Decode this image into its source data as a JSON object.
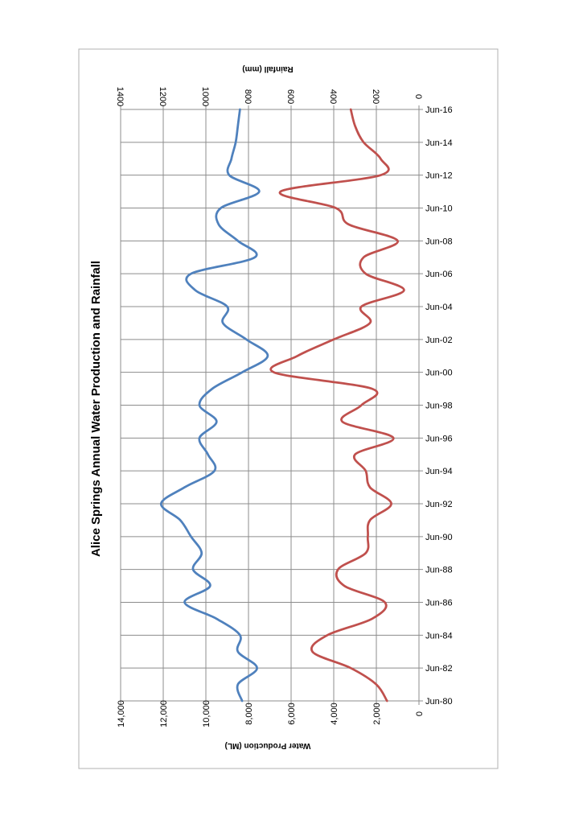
{
  "chart_data": {
    "type": "line",
    "orientation": "rotated-90-clockwise",
    "title": "Alice Springs Annual Water Production and Rainfall",
    "x_tick_labels": [
      "Jun-80",
      "Jun-82",
      "Jun-84",
      "Jun-86",
      "Jun-88",
      "Jun-90",
      "Jun-92",
      "Jun-94",
      "Jun-96",
      "Jun-98",
      "Jun-00",
      "Jun-02",
      "Jun-04",
      "Jun-06",
      "Jun-08",
      "Jun-10",
      "Jun-12",
      "Jun-14",
      "Jun-16"
    ],
    "x": [
      1980,
      1981,
      1982,
      1983,
      1984,
      1985,
      1986,
      1987,
      1988,
      1989,
      1990,
      1991,
      1992,
      1993,
      1994,
      1995,
      1996,
      1997,
      1998,
      1999,
      2000,
      2001,
      2002,
      2003,
      2004,
      2005,
      2006,
      2007,
      2008,
      2009,
      2010,
      2011,
      2012,
      2013,
      2014,
      2015,
      2016
    ],
    "xlim": [
      1980,
      2016
    ],
    "grid": true,
    "axes": {
      "left": {
        "label": "Water Production (ML)",
        "min": 0,
        "max": 14000,
        "ticks": [
          "0",
          "2,000",
          "4,000",
          "6,000",
          "8,000",
          "10,000",
          "12,000",
          "14,000"
        ]
      },
      "right": {
        "label": "Rainfall (mm)",
        "min": 0,
        "max": 1400,
        "ticks": [
          "0",
          "200",
          "400",
          "600",
          "800",
          "1000",
          "1200",
          "1400"
        ]
      }
    },
    "series": [
      {
        "axis": "left",
        "color": "#4f81bd",
        "values": [
          8300,
          8500,
          7600,
          8500,
          8400,
          9500,
          11000,
          9800,
          10600,
          10200,
          10700,
          11200,
          12100,
          11000,
          9600,
          9900,
          10300,
          9500,
          10300,
          9700,
          8300,
          7100,
          8100,
          9200,
          9000,
          10500,
          10700,
          7700,
          8500,
          9400,
          9300,
          7500,
          8900,
          8800,
          8600,
          8500,
          8400
        ]
      },
      {
        "axis": "right",
        "color": "#c0504d",
        "values": [
          150,
          200,
          320,
          500,
          430,
          220,
          160,
          350,
          380,
          250,
          240,
          230,
          130,
          230,
          250,
          300,
          120,
          360,
          270,
          220,
          680,
          570,
          400,
          230,
          270,
          70,
          250,
          260,
          100,
          330,
          390,
          650,
          180,
          180,
          260,
          300,
          320
        ]
      }
    ]
  }
}
